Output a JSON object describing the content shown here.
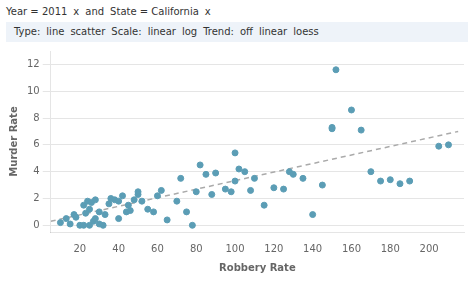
{
  "chart_data": {
    "type": "scatter",
    "annotations": [
      [
        "Year = 2011",
        "x",
        "and",
        "State = California",
        "x"
      ],
      [
        "Type:",
        "line",
        "scatter",
        "Scale:",
        "linear",
        "log",
        "Trend:",
        "off",
        "linear",
        "loess"
      ]
    ],
    "xlabel": "Robbery Rate",
    "ylabel": "Murder Rate",
    "series": [
      {
        "type": "scatter",
        "color": "#5b9db5",
        "marker": "circle",
        "x": [
          10,
          13,
          15,
          17,
          18,
          20,
          22,
          22,
          23,
          24,
          25,
          25,
          26,
          27,
          28,
          28,
          30,
          30,
          32,
          33,
          35,
          36,
          38,
          40,
          40,
          42,
          44,
          45,
          46,
          48,
          50,
          50,
          52,
          55,
          58,
          60,
          62,
          65,
          70,
          72,
          75,
          78,
          80,
          82,
          85,
          88,
          90,
          95,
          98,
          100,
          100,
          102,
          105,
          108,
          110,
          115,
          120,
          125,
          128,
          130,
          135,
          140,
          145,
          150,
          150,
          152,
          160,
          165,
          170,
          175,
          180,
          185,
          190,
          205,
          210
        ],
        "values": [
          0.2,
          0.5,
          0.1,
          0.8,
          0.6,
          0.0,
          0.0,
          1.5,
          0.9,
          1.8,
          0.0,
          1.2,
          1.7,
          0.3,
          1.9,
          0.5,
          0.1,
          1.0,
          0.0,
          0.8,
          1.6,
          2.0,
          1.9,
          0.5,
          1.8,
          2.2,
          1.0,
          1.5,
          1.1,
          1.9,
          2.5,
          2.3,
          1.8,
          1.2,
          1.0,
          2.2,
          2.6,
          0.4,
          1.8,
          3.5,
          1.0,
          0.0,
          2.5,
          4.5,
          3.8,
          2.3,
          3.9,
          2.7,
          2.5,
          5.4,
          3.3,
          4.2,
          4.0,
          2.6,
          3.5,
          1.5,
          2.8,
          2.7,
          4.0,
          3.8,
          3.5,
          0.8,
          3.0,
          7.3,
          7.2,
          11.6,
          8.6,
          7.1,
          4.0,
          3.3,
          3.4,
          3.1,
          3.3,
          5.9,
          6.0
        ]
      },
      {
        "type": "line",
        "color": "#aaaaaa",
        "line_style": "dashed",
        "x": [
          5,
          215
        ],
        "values": [
          0.3,
          7.0
        ]
      }
    ],
    "xlim": [
      5,
      218
    ],
    "xticks": [
      20,
      40,
      60,
      80,
      100,
      120,
      140,
      160,
      180,
      200
    ],
    "ylim": [
      -0.5,
      13
    ],
    "yticks": [
      0,
      2,
      4,
      6,
      8,
      10,
      12
    ],
    "grid": "y"
  }
}
